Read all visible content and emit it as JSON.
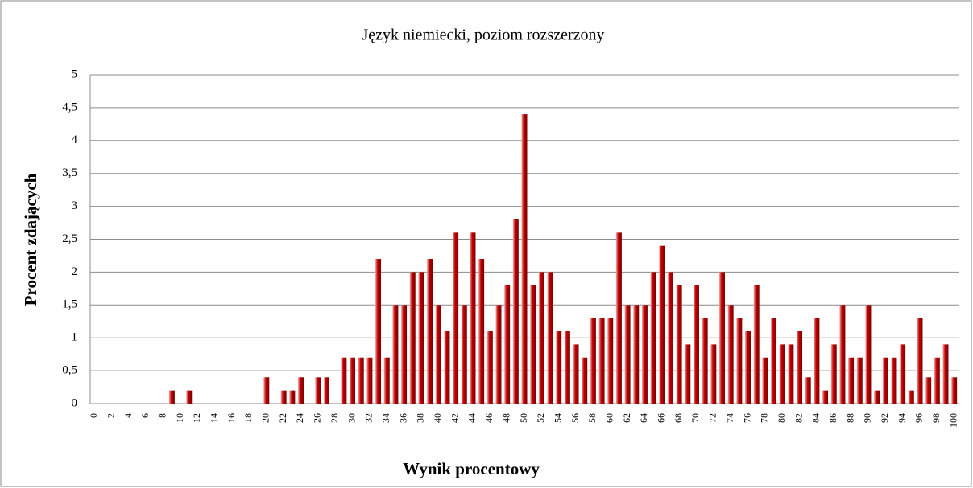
{
  "chart_data": {
    "type": "bar",
    "title": "Język niemiecki, poziom rozszerzony",
    "x_label": "Wynik procentowy",
    "y_label": "Procent zdających",
    "categories": [
      "0",
      null,
      "2",
      null,
      "4",
      null,
      "6",
      null,
      "8",
      null,
      "10",
      null,
      "12",
      null,
      "14",
      null,
      "16",
      null,
      "18",
      null,
      "20",
      null,
      "22",
      null,
      "24",
      null,
      "26",
      null,
      "28",
      null,
      "30",
      null,
      "32",
      null,
      "34",
      null,
      "36",
      null,
      "38",
      null,
      "40",
      null,
      "42",
      null,
      "44",
      null,
      "46",
      null,
      "48",
      null,
      "50",
      null,
      "52",
      null,
      "54",
      null,
      "56",
      null,
      "58",
      null,
      "60",
      null,
      "62",
      null,
      "64",
      null,
      "66",
      null,
      "68",
      null,
      "70",
      null,
      "72",
      null,
      "74",
      null,
      "76",
      null,
      "78",
      null,
      "80",
      null,
      "82",
      null,
      "84",
      null,
      "86",
      null,
      "88",
      null,
      "90",
      null,
      "92",
      null,
      "94",
      null,
      "96",
      null,
      "98",
      null,
      "100"
    ],
    "values": [
      0,
      0,
      0,
      0,
      0,
      0,
      0,
      0,
      0,
      0.2,
      0,
      0.2,
      0,
      0,
      0,
      0,
      0,
      0,
      0,
      0,
      0.4,
      0,
      0.2,
      0.2,
      0.4,
      0,
      0.4,
      0.4,
      0,
      0.7,
      0.7,
      0.7,
      0.7,
      2.2,
      0.7,
      1.5,
      1.5,
      2.0,
      2.0,
      2.2,
      1.5,
      1.1,
      2.6,
      1.5,
      2.6,
      2.2,
      1.1,
      1.5,
      1.8,
      2.8,
      4.4,
      1.8,
      2.0,
      2.0,
      1.1,
      1.1,
      0.9,
      0.7,
      1.3,
      1.3,
      1.3,
      2.6,
      1.5,
      1.5,
      1.5,
      2.0,
      2.4,
      2.0,
      1.8,
      0.9,
      1.8,
      1.3,
      0.9,
      2.0,
      1.5,
      1.3,
      1.1,
      1.8,
      0.7,
      1.3,
      0.9,
      0.9,
      1.1,
      0.4,
      1.3,
      0.2,
      0.9,
      1.5,
      0.7,
      0.7,
      1.5,
      0.2,
      0.7,
      0.7,
      0.9,
      0.2,
      1.3,
      0.4,
      0.7,
      0.9,
      0.4
    ],
    "color": "#c00000",
    "ylim": [
      0,
      5
    ],
    "yticks": [
      0,
      {
        "value": 0.5,
        "label": "0,5"
      },
      1,
      {
        "value": 1.5,
        "label": "1,5"
      },
      2,
      {
        "value": 2.5,
        "label": "2,5"
      },
      3,
      {
        "value": 3.5,
        "label": "3,5"
      },
      4,
      {
        "value": 4.5,
        "label": "4,5"
      },
      5
    ],
    "grid": true
  }
}
